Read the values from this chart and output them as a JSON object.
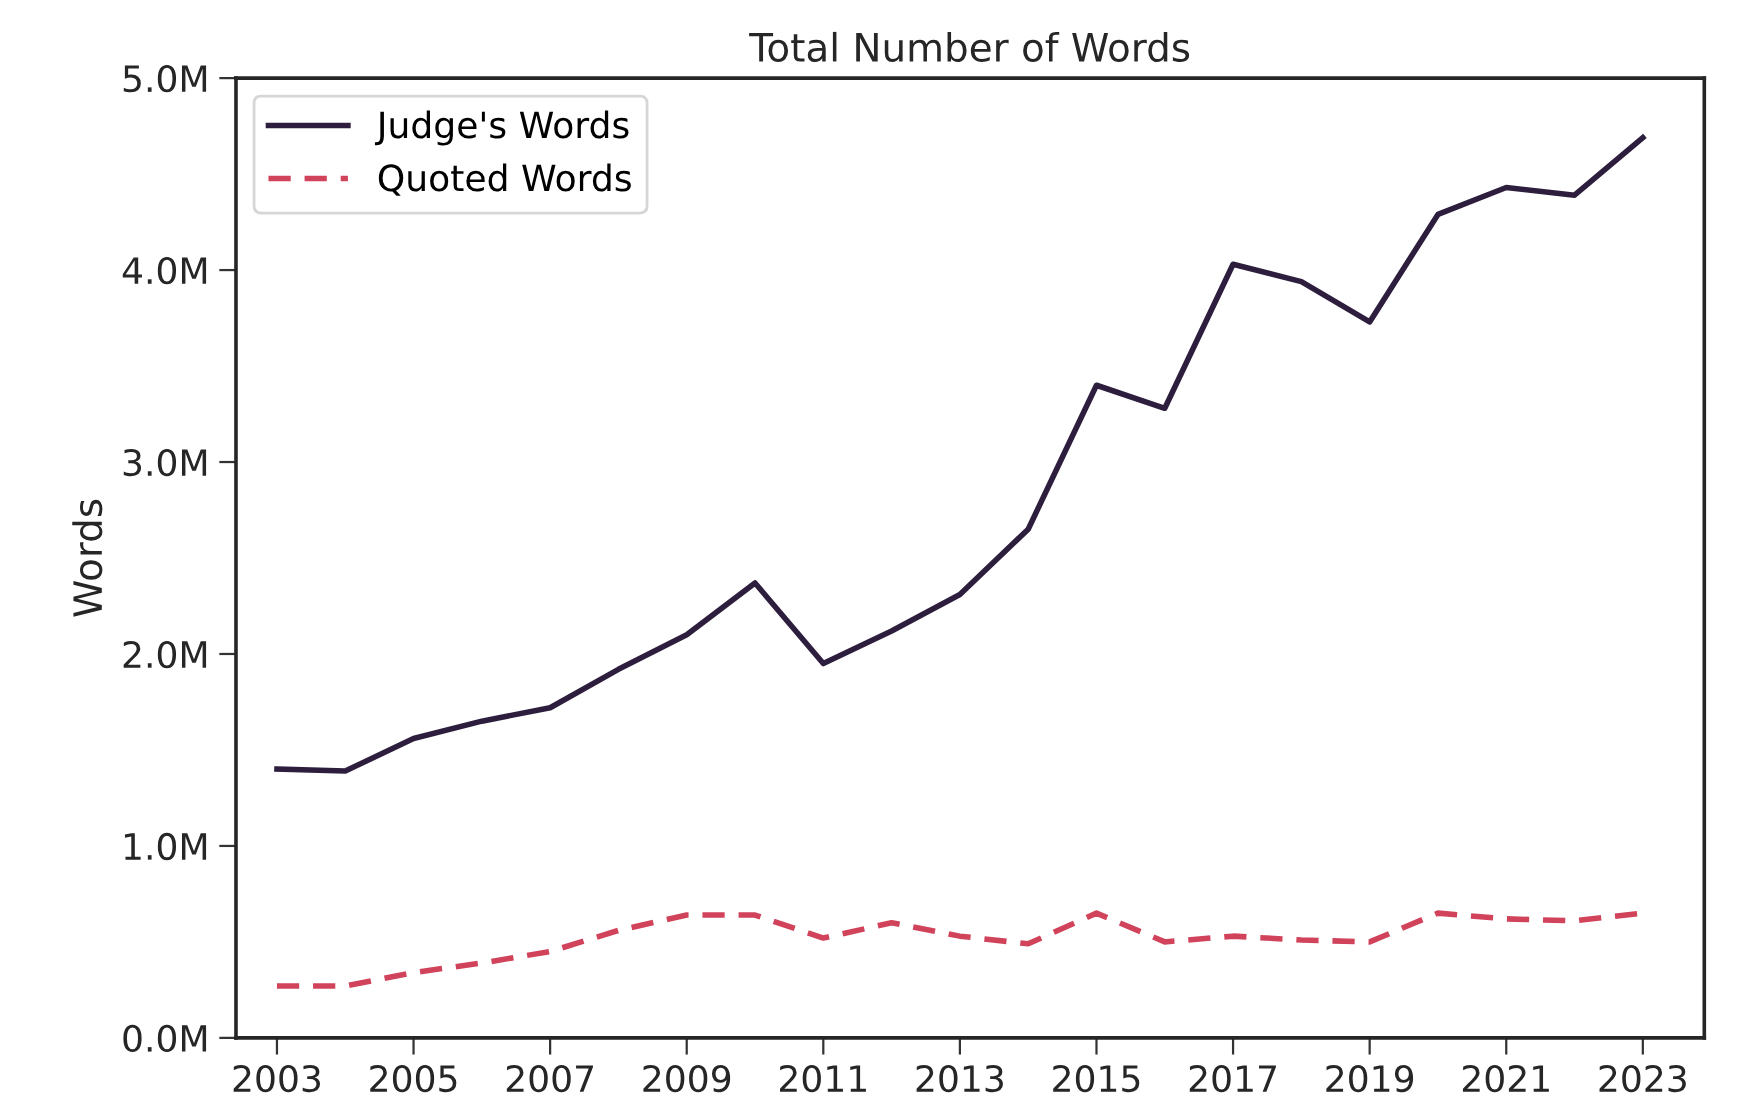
{
  "chart_data": {
    "type": "line",
    "title": "Total Number of Words",
    "ylabel": "Words",
    "x": [
      2003,
      2004,
      2005,
      2006,
      2007,
      2008,
      2009,
      2010,
      2011,
      2012,
      2013,
      2014,
      2015,
      2016,
      2017,
      2018,
      2019,
      2020,
      2021,
      2022,
      2023
    ],
    "series": [
      {
        "name": "Judge's Words",
        "color": "#2d1e3e",
        "line_style": "solid",
        "values": [
          1.4,
          1.39,
          1.56,
          1.65,
          1.72,
          1.92,
          2.1,
          2.37,
          1.95,
          2.12,
          2.31,
          2.65,
          3.4,
          3.28,
          4.03,
          3.94,
          3.73,
          4.29,
          4.43,
          4.39,
          4.69
        ]
      },
      {
        "name": "Quoted Words",
        "color": "#d1435b",
        "line_style": "dashed",
        "values": [
          0.27,
          0.27,
          0.34,
          0.39,
          0.45,
          0.56,
          0.64,
          0.64,
          0.52,
          0.6,
          0.53,
          0.49,
          0.65,
          0.5,
          0.53,
          0.51,
          0.5,
          0.65,
          0.62,
          0.61,
          0.65
        ]
      }
    ],
    "xlim": [
      2002.4,
      2023.9
    ],
    "ylim": [
      0,
      5
    ],
    "xticks": [
      2003,
      2005,
      2007,
      2009,
      2011,
      2013,
      2015,
      2017,
      2019,
      2021,
      2023
    ],
    "yticks": [
      {
        "value": 0,
        "label": "0.0M"
      },
      {
        "value": 1,
        "label": "1.0M"
      },
      {
        "value": 2,
        "label": "2.0M"
      },
      {
        "value": 3,
        "label": "3.0M"
      },
      {
        "value": 4,
        "label": "4.0M"
      },
      {
        "value": 5,
        "label": "5.0M"
      }
    ],
    "grid": false,
    "legend": "top left",
    "marker": "none"
  }
}
